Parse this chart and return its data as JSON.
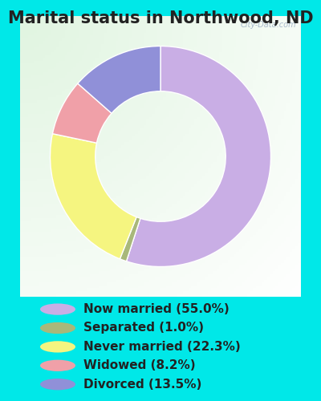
{
  "title": "Marital status in Northwood, ND",
  "slices": [
    55.0,
    1.0,
    22.3,
    8.2,
    13.5
  ],
  "labels": [
    "Now married (55.0%)",
    "Separated (1.0%)",
    "Never married (22.3%)",
    "Widowed (8.2%)",
    "Divorced (13.5%)"
  ],
  "colors": [
    "#c9aee5",
    "#a8b87a",
    "#f5f580",
    "#f0a0a8",
    "#9090d8"
  ],
  "bg_cyan": "#00e8e8",
  "bg_inner_color1": "#e8f5e8",
  "bg_inner_color2": "#f8fdf8",
  "title_fontsize": 15,
  "legend_fontsize": 11,
  "watermark": "City-Data.com",
  "donut_width": 0.38
}
